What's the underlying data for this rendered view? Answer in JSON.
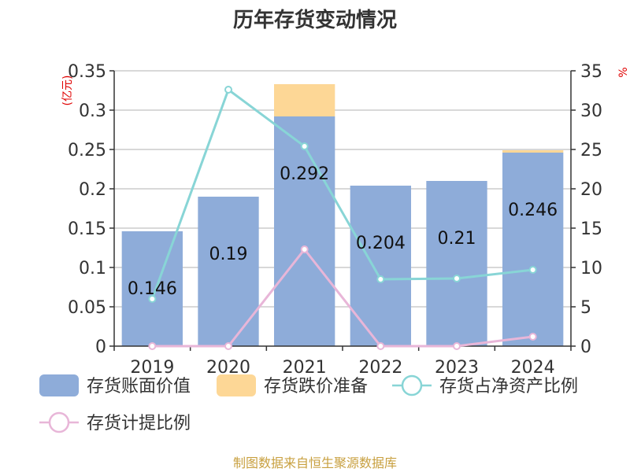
{
  "chart_data": {
    "type": "bar",
    "title": "历年存货变动情况",
    "categories": [
      "2019",
      "2020",
      "2021",
      "2022",
      "2023",
      "2024"
    ],
    "ylabel_left": "(亿元)",
    "ylabel_right": "%",
    "ylim_left": [
      0,
      0.35
    ],
    "ylim_right": [
      0,
      35
    ],
    "yticks_left": [
      "0",
      "0.05",
      "0.1",
      "0.15",
      "0.2",
      "0.25",
      "0.3",
      "0.35"
    ],
    "yticks_right": [
      "0",
      "5",
      "10",
      "15",
      "20",
      "25",
      "30",
      "35"
    ],
    "grid": true,
    "legend_position": "bottom",
    "series": [
      {
        "name": "存货账面价值",
        "kind": "bar",
        "axis": "left",
        "color": "#8eacd9",
        "values": [
          0.146,
          0.19,
          0.292,
          0.204,
          0.21,
          0.246
        ],
        "labels": [
          "0.146",
          "0.19",
          "0.292",
          "0.204",
          "0.21",
          "0.246"
        ]
      },
      {
        "name": "存货跌价准备",
        "kind": "bar-stacked",
        "axis": "left",
        "color": "#fdd796",
        "values": [
          0,
          0,
          0.041,
          0,
          0,
          0.003
        ]
      },
      {
        "name": "存货占净资产比例",
        "kind": "line",
        "axis": "right",
        "color": "#88d5d6",
        "values": [
          6.0,
          32.6,
          25.4,
          8.5,
          8.6,
          9.7
        ]
      },
      {
        "name": "存货计提比例",
        "kind": "line",
        "axis": "right",
        "color": "#e8b6d8",
        "values": [
          0,
          0,
          12.3,
          0,
          0,
          1.2
        ]
      }
    ]
  },
  "footer": "制图数据来自恒生聚源数据库"
}
